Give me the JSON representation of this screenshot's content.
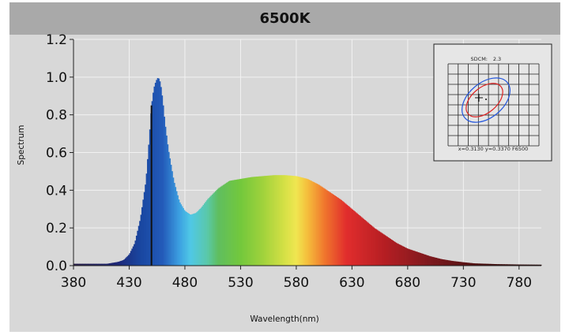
{
  "chart_data": {
    "type": "area",
    "title": "6500K",
    "xlabel": "Wavelength(nm)",
    "ylabel": "Spectrum",
    "xlim": [
      380,
      800
    ],
    "ylim": [
      0,
      1.2
    ],
    "x_ticks": [
      380,
      430,
      480,
      530,
      580,
      630,
      680,
      730,
      780
    ],
    "x_tick_labels": [
      "380",
      "430",
      "480",
      "530",
      "580",
      "630",
      "680",
      "730",
      "780"
    ],
    "y_ticks": [
      0.0,
      0.2,
      0.4,
      0.6,
      0.8,
      1.0,
      1.2
    ],
    "y_tick_labels": [
      "0.0",
      "0.2",
      "0.4",
      "0.6",
      "0.8",
      "1.0",
      "1.2"
    ],
    "grid": true,
    "marker_wavelength": 450,
    "series": [
      {
        "x": [
          380,
          400,
          410,
          420,
          425,
          430,
          435,
          440,
          445,
          448,
          450,
          452,
          454,
          456,
          458,
          460,
          462,
          465,
          470,
          475,
          480,
          485,
          490,
          495,
          500,
          510,
          520,
          530,
          540,
          550,
          560,
          570,
          580,
          590,
          600,
          610,
          620,
          630,
          640,
          650,
          660,
          670,
          680,
          690,
          700,
          710,
          720,
          730,
          740,
          750,
          760,
          780,
          800
        ],
        "y": [
          0.01,
          0.01,
          0.01,
          0.02,
          0.03,
          0.06,
          0.12,
          0.25,
          0.45,
          0.68,
          0.85,
          0.94,
          0.98,
          1.0,
          0.97,
          0.88,
          0.76,
          0.62,
          0.45,
          0.34,
          0.29,
          0.27,
          0.28,
          0.31,
          0.35,
          0.41,
          0.45,
          0.46,
          0.47,
          0.475,
          0.48,
          0.48,
          0.475,
          0.46,
          0.43,
          0.39,
          0.35,
          0.3,
          0.25,
          0.2,
          0.16,
          0.12,
          0.09,
          0.07,
          0.05,
          0.035,
          0.025,
          0.018,
          0.012,
          0.01,
          0.008,
          0.006,
          0.005
        ]
      }
    ]
  },
  "inset": {
    "sdcm_label": "SDCM:",
    "sdcm_value": "2.3",
    "coords_text": "x=0.3130 y=0.3370 F6500",
    "colors": {
      "outer_ellipse": "#2255dd",
      "inner_ellipse": "#dd2222"
    }
  },
  "colors": {
    "background": "#d8d8d8",
    "title_bar": "#a9a9a9",
    "grid": "#f2f2f2",
    "marker_line": "#111111"
  }
}
